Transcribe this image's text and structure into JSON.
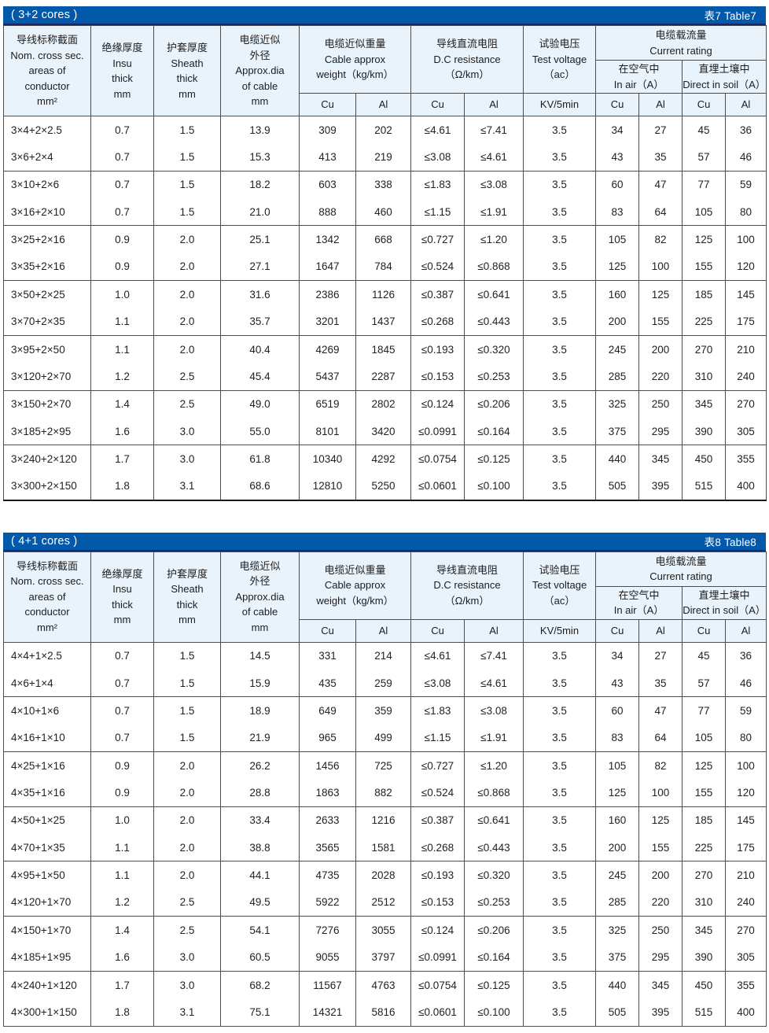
{
  "colors": {
    "bar_blue": "#0359a9",
    "bar_edge_navy": "#19266b",
    "header_bg": "#e9f3fb",
    "grid_line": "#4d4d4d",
    "title_text": "#ffffff"
  },
  "header": {
    "cross_sec": [
      "导线标称截面",
      "Nom. cross sec.",
      "areas of",
      "conductor",
      "mm²"
    ],
    "insu": [
      "绝缘厚度",
      "Insu",
      "thick",
      "mm"
    ],
    "sheath": [
      "护套厚度",
      "Sheath",
      "thick",
      "mm"
    ],
    "dia": [
      "电缆近似",
      "外径",
      "Approx.dia",
      "of cable",
      "mm"
    ],
    "weight": [
      "电缆近似重量",
      "Cable approx",
      "weight（kg/km）"
    ],
    "resistance": [
      "导线直流电阻",
      "D.C resistance",
      "（Ω/km）"
    ],
    "test_voltage": [
      "试验电压",
      "Test voltage",
      "（ac）"
    ],
    "current_rating": [
      "电缆载流量",
      "Current rating"
    ],
    "in_air": [
      "在空气中",
      "In air（A）"
    ],
    "in_soil": [
      "直埋土壤中",
      "Direct in soil（A）"
    ],
    "cu": "Cu",
    "al": "Al",
    "kv": "KV/5min"
  },
  "tables": [
    {
      "title": "( 3+2 cores )",
      "tag": "表7 Table7",
      "rows": [
        [
          "3×4+2×2.5",
          "0.7",
          "1.5",
          "13.9",
          "309",
          "202",
          "≤4.61",
          "≤7.41",
          "3.5",
          "34",
          "27",
          "45",
          "36"
        ],
        [
          "3×6+2×4",
          "0.7",
          "1.5",
          "15.3",
          "413",
          "219",
          "≤3.08",
          "≤4.61",
          "3.5",
          "43",
          "35",
          "57",
          "46"
        ],
        [
          "3×10+2×6",
          "0.7",
          "1.5",
          "18.2",
          "603",
          "338",
          "≤1.83",
          "≤3.08",
          "3.5",
          "60",
          "47",
          "77",
          "59"
        ],
        [
          "3×16+2×10",
          "0.7",
          "1.5",
          "21.0",
          "888",
          "460",
          "≤1.15",
          "≤1.91",
          "3.5",
          "83",
          "64",
          "105",
          "80"
        ],
        [
          "3×25+2×16",
          "0.9",
          "2.0",
          "25.1",
          "1342",
          "668",
          "≤0.727",
          "≤1.20",
          "3.5",
          "105",
          "82",
          "125",
          "100"
        ],
        [
          "3×35+2×16",
          "0.9",
          "2.0",
          "27.1",
          "1647",
          "784",
          "≤0.524",
          "≤0.868",
          "3.5",
          "125",
          "100",
          "155",
          "120"
        ],
        [
          "3×50+2×25",
          "1.0",
          "2.0",
          "31.6",
          "2386",
          "1126",
          "≤0.387",
          "≤0.641",
          "3.5",
          "160",
          "125",
          "185",
          "145"
        ],
        [
          "3×70+2×35",
          "1.1",
          "2.0",
          "35.7",
          "3201",
          "1437",
          "≤0.268",
          "≤0.443",
          "3.5",
          "200",
          "155",
          "225",
          "175"
        ],
        [
          "3×95+2×50",
          "1.1",
          "2.0",
          "40.4",
          "4269",
          "1845",
          "≤0.193",
          "≤0.320",
          "3.5",
          "245",
          "200",
          "270",
          "210"
        ],
        [
          "3×120+2×70",
          "1.2",
          "2.5",
          "45.4",
          "5437",
          "2287",
          "≤0.153",
          "≤0.253",
          "3.5",
          "285",
          "220",
          "310",
          "240"
        ],
        [
          "3×150+2×70",
          "1.4",
          "2.5",
          "49.0",
          "6519",
          "2802",
          "≤0.124",
          "≤0.206",
          "3.5",
          "325",
          "250",
          "345",
          "270"
        ],
        [
          "3×185+2×95",
          "1.6",
          "3.0",
          "55.0",
          "8101",
          "3420",
          "≤0.0991",
          "≤0.164",
          "3.5",
          "375",
          "295",
          "390",
          "305"
        ],
        [
          "3×240+2×120",
          "1.7",
          "3.0",
          "61.8",
          "10340",
          "4292",
          "≤0.0754",
          "≤0.125",
          "3.5",
          "440",
          "345",
          "450",
          "355"
        ],
        [
          "3×300+2×150",
          "1.8",
          "3.1",
          "68.6",
          "12810",
          "5250",
          "≤0.0601",
          "≤0.100",
          "3.5",
          "505",
          "395",
          "515",
          "400"
        ]
      ]
    },
    {
      "title": "( 4+1 cores )",
      "tag": "表8 Table8",
      "rows": [
        [
          "4×4+1×2.5",
          "0.7",
          "1.5",
          "14.5",
          "331",
          "214",
          "≤4.61",
          "≤7.41",
          "3.5",
          "34",
          "27",
          "45",
          "36"
        ],
        [
          "4×6+1×4",
          "0.7",
          "1.5",
          "15.9",
          "435",
          "259",
          "≤3.08",
          "≤4.61",
          "3.5",
          "43",
          "35",
          "57",
          "46"
        ],
        [
          "4×10+1×6",
          "0.7",
          "1.5",
          "18.9",
          "649",
          "359",
          "≤1.83",
          "≤3.08",
          "3.5",
          "60",
          "47",
          "77",
          "59"
        ],
        [
          "4×16+1×10",
          "0.7",
          "1.5",
          "21.9",
          "965",
          "499",
          "≤1.15",
          "≤1.91",
          "3.5",
          "83",
          "64",
          "105",
          "80"
        ],
        [
          "4×25+1×16",
          "0.9",
          "2.0",
          "26.2",
          "1456",
          "725",
          "≤0.727",
          "≤1.20",
          "3.5",
          "105",
          "82",
          "125",
          "100"
        ],
        [
          "4×35+1×16",
          "0.9",
          "2.0",
          "28.8",
          "1863",
          "882",
          "≤0.524",
          "≤0.868",
          "3.5",
          "125",
          "100",
          "155",
          "120"
        ],
        [
          "4×50+1×25",
          "1.0",
          "2.0",
          "33.4",
          "2633",
          "1216",
          "≤0.387",
          "≤0.641",
          "3.5",
          "160",
          "125",
          "185",
          "145"
        ],
        [
          "4×70+1×35",
          "1.1",
          "2.0",
          "38.8",
          "3565",
          "1581",
          "≤0.268",
          "≤0.443",
          "3.5",
          "200",
          "155",
          "225",
          "175"
        ],
        [
          "4×95+1×50",
          "1.1",
          "2.0",
          "44.1",
          "4735",
          "2028",
          "≤0.193",
          "≤0.320",
          "3.5",
          "245",
          "200",
          "270",
          "210"
        ],
        [
          "4×120+1×70",
          "1.2",
          "2.5",
          "49.5",
          "5922",
          "2512",
          "≤0.153",
          "≤0.253",
          "3.5",
          "285",
          "220",
          "310",
          "240"
        ],
        [
          "4×150+1×70",
          "1.4",
          "2.5",
          "54.1",
          "7276",
          "3055",
          "≤0.124",
          "≤0.206",
          "3.5",
          "325",
          "250",
          "345",
          "270"
        ],
        [
          "4×185+1×95",
          "1.6",
          "3.0",
          "60.5",
          "9055",
          "3797",
          "≤0.0991",
          "≤0.164",
          "3.5",
          "375",
          "295",
          "390",
          "305"
        ],
        [
          "4×240+1×120",
          "1.7",
          "3.0",
          "68.2",
          "11567",
          "4763",
          "≤0.0754",
          "≤0.125",
          "3.5",
          "440",
          "345",
          "450",
          "355"
        ],
        [
          "4×300+1×150",
          "1.8",
          "3.1",
          "75.1",
          "14321",
          "5816",
          "≤0.0601",
          "≤0.100",
          "3.5",
          "505",
          "395",
          "515",
          "400"
        ]
      ]
    }
  ]
}
